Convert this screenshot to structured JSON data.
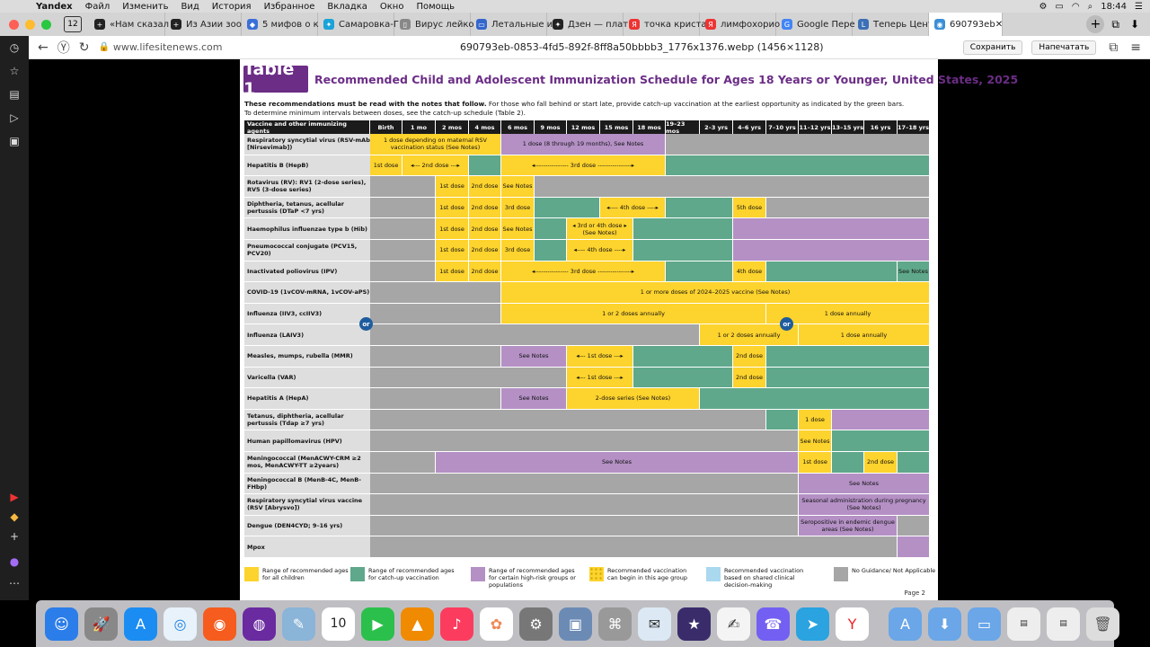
{
  "menubar": {
    "app": "Yandex",
    "items": [
      "Файл",
      "Изменить",
      "Вид",
      "История",
      "Избранное",
      "Вкладка",
      "Окно",
      "Помощь"
    ],
    "time": "18:44"
  },
  "tabbar": {
    "tab_count": "12",
    "tabs": [
      {
        "title": "«Нам сказал",
        "fav": "+",
        "color": "#222"
      },
      {
        "title": "Из Азии зоо",
        "fav": "+",
        "color": "#222"
      },
      {
        "title": "5 мифов о к",
        "fav": "◆",
        "color": "#3a6fd8"
      },
      {
        "title": "Самаровка-Г",
        "fav": "✦",
        "color": "#1aa3d9"
      },
      {
        "title": "Вирус лейко",
        "fav": "▯",
        "color": "#888"
      },
      {
        "title": "Летальные и",
        "fav": "▭",
        "color": "#3366cc"
      },
      {
        "title": "Дзен — плат",
        "fav": "✦",
        "color": "#222"
      },
      {
        "title": "точка криста",
        "fav": "Я",
        "color": "#e33"
      },
      {
        "title": "лимфохорио",
        "fav": "Я",
        "color": "#e33"
      },
      {
        "title": "Google Пере",
        "fav": "G",
        "color": "#4285f4"
      },
      {
        "title": "Теперь Цент",
        "fav": "L",
        "color": "#3b6fb6"
      }
    ],
    "active_tab": "690793eb"
  },
  "addressbar": {
    "url": "www.lifesitenews.com",
    "title": "690793eb-0853-4fd5-892f-8ff8a50bbbb3_1776x1376.webp (1456×1128)",
    "save": "Сохранить",
    "print": "Напечатать"
  },
  "doc": {
    "badge": "Table 1",
    "title": "Recommended Child and Adolescent Immunization Schedule for Ages 18 Years or Younger, United States, 2025",
    "intro_bold": "These recommendations must be read with the notes that follow.",
    "intro_rest": " For those who fall behind or start late, provide catch-up vaccination at the earliest opportunity as indicated by the green bars.",
    "intro2": "To determine minimum intervals between doses, see the catch-up schedule (Table 2).",
    "col_header": "Vaccine and other immunizing agents",
    "ages": [
      "Birth",
      "1 mo",
      "2 mos",
      "4 mos",
      "6 mos",
      "9 mos",
      "12 mos",
      "15 mos",
      "18 mos",
      "19–23 mos",
      "2–3 yrs",
      "4–6 yrs",
      "7–10 yrs",
      "11–12 yrs",
      "13–15 yrs",
      "16 yrs",
      "17–18 yrs"
    ],
    "rows": [
      {
        "label": "Respiratory syncytial virus (RSV-mAb [Nirsevimab])",
        "cells": [
          [
            "Y",
            0,
            4,
            "1 dose depending on maternal RSV vaccination status (See Notes)"
          ],
          [
            "P",
            4,
            5,
            "1 dose (8 through 19 months), See Notes"
          ],
          [
            "A",
            9,
            8,
            ""
          ]
        ]
      },
      {
        "label": "Hepatitis B (HepB)",
        "cells": [
          [
            "Y",
            0,
            1,
            "1st dose"
          ],
          [
            "Y",
            1,
            2,
            "◂--- 2nd dose ---▸"
          ],
          [
            "G",
            3,
            1,
            ""
          ],
          [
            "Y",
            4,
            5,
            "◂---------------- 3rd dose ----------------▸"
          ],
          [
            "G",
            9,
            8,
            ""
          ]
        ]
      },
      {
        "label": "Rotavirus (RV): RV1 (2-dose series), RV5 (3-dose series)",
        "cells": [
          [
            "A",
            0,
            2,
            ""
          ],
          [
            "Y",
            2,
            1,
            "1st dose"
          ],
          [
            "Y",
            3,
            1,
            "2nd dose"
          ],
          [
            "Y",
            4,
            1,
            "See Notes"
          ],
          [
            "A",
            5,
            12,
            ""
          ]
        ]
      },
      {
        "label": "Diphtheria, tetanus, acellular pertussis (DTaP <7 yrs)",
        "cells": [
          [
            "A",
            0,
            2,
            ""
          ],
          [
            "Y",
            2,
            1,
            "1st dose"
          ],
          [
            "Y",
            3,
            1,
            "2nd dose"
          ],
          [
            "Y",
            4,
            1,
            "3rd dose"
          ],
          [
            "G",
            5,
            2,
            ""
          ],
          [
            "Y",
            7,
            2,
            "◂---- 4th dose ----▸"
          ],
          [
            "G",
            9,
            2,
            ""
          ],
          [
            "Y",
            11,
            1,
            "5th dose"
          ],
          [
            "A",
            12,
            5,
            ""
          ]
        ]
      },
      {
        "label": "Haemophilus influenzae type b (Hib)",
        "cells": [
          [
            "A",
            0,
            2,
            ""
          ],
          [
            "Y",
            2,
            1,
            "1st dose"
          ],
          [
            "Y",
            3,
            1,
            "2nd dose"
          ],
          [
            "Y",
            4,
            1,
            "See Notes"
          ],
          [
            "G",
            5,
            1,
            ""
          ],
          [
            "Y",
            6,
            2,
            "◂ 3rd or 4th dose ▸ (See Notes)"
          ],
          [
            "G",
            8,
            3,
            ""
          ],
          [
            "P",
            11,
            6,
            ""
          ]
        ]
      },
      {
        "label": "Pneumococcal conjugate (PCV15, PCV20)",
        "cells": [
          [
            "A",
            0,
            2,
            ""
          ],
          [
            "Y",
            2,
            1,
            "1st dose"
          ],
          [
            "Y",
            3,
            1,
            "2nd dose"
          ],
          [
            "Y",
            4,
            1,
            "3rd dose"
          ],
          [
            "G",
            5,
            1,
            ""
          ],
          [
            "Y",
            6,
            2,
            "◂---- 4th dose ----▸"
          ],
          [
            "G",
            8,
            3,
            ""
          ],
          [
            "P",
            11,
            6,
            ""
          ]
        ]
      },
      {
        "label": "Inactivated poliovirus (IPV)",
        "cells": [
          [
            "A",
            0,
            2,
            ""
          ],
          [
            "Y",
            2,
            1,
            "1st dose"
          ],
          [
            "Y",
            3,
            1,
            "2nd dose"
          ],
          [
            "Y",
            4,
            5,
            "◂---------------- 3rd dose ----------------▸"
          ],
          [
            "G",
            9,
            2,
            ""
          ],
          [
            "Y",
            11,
            1,
            "4th dose"
          ],
          [
            "G",
            12,
            4,
            ""
          ],
          [
            "G",
            16,
            1,
            "See Notes"
          ]
        ]
      },
      {
        "label": "COVID-19 (1vCOV-mRNA, 1vCOV-aPS)",
        "cells": [
          [
            "A",
            0,
            4,
            ""
          ],
          [
            "Y",
            4,
            13,
            "1 or more doses of 2024–2025 vaccine (See Notes)"
          ]
        ]
      },
      {
        "label": "Influenza (IIV3, ccIIV3)",
        "cells": [
          [
            "A",
            0,
            4,
            ""
          ],
          [
            "Y",
            4,
            8,
            "1 or 2 doses annually"
          ],
          [
            "Y",
            12,
            5,
            "1 dose annually"
          ]
        ]
      },
      {
        "label": "Influenza (LAIV3)",
        "cells": [
          [
            "A",
            0,
            10,
            ""
          ],
          [
            "Y",
            10,
            3,
            "1 or 2 doses annually"
          ],
          [
            "Y",
            13,
            4,
            "1 dose annually"
          ]
        ]
      },
      {
        "label": "Measles, mumps, rubella (MMR)",
        "cells": [
          [
            "A",
            0,
            4,
            ""
          ],
          [
            "P",
            4,
            2,
            "See Notes"
          ],
          [
            "Y",
            6,
            2,
            "◂--- 1st dose ---▸"
          ],
          [
            "G",
            8,
            3,
            ""
          ],
          [
            "Y",
            11,
            1,
            "2nd dose"
          ],
          [
            "G",
            12,
            5,
            ""
          ]
        ]
      },
      {
        "label": "Varicella (VAR)",
        "cells": [
          [
            "A",
            0,
            6,
            ""
          ],
          [
            "Y",
            6,
            2,
            "◂--- 1st dose ---▸"
          ],
          [
            "G",
            8,
            3,
            ""
          ],
          [
            "Y",
            11,
            1,
            "2nd dose"
          ],
          [
            "G",
            12,
            5,
            ""
          ]
        ]
      },
      {
        "label": "Hepatitis A (HepA)",
        "cells": [
          [
            "A",
            0,
            4,
            ""
          ],
          [
            "P",
            4,
            2,
            "See Notes"
          ],
          [
            "Y",
            6,
            4,
            "2-dose series (See Notes)"
          ],
          [
            "G",
            10,
            7,
            ""
          ]
        ]
      },
      {
        "label": "Tetanus, diphtheria, acellular pertussis (Tdap ≥7 yrs)",
        "cells": [
          [
            "A",
            0,
            12,
            ""
          ],
          [
            "G",
            12,
            1,
            ""
          ],
          [
            "Y",
            13,
            1,
            "1 dose"
          ],
          [
            "P",
            14,
            3,
            ""
          ]
        ]
      },
      {
        "label": "Human papillomavirus (HPV)",
        "cells": [
          [
            "A",
            0,
            13,
            ""
          ],
          [
            "Y",
            13,
            1,
            "See Notes"
          ],
          [
            "G",
            14,
            3,
            ""
          ]
        ]
      },
      {
        "label": "Meningococcal (MenACWY-CRM ≥2 mos, MenACWY-TT ≥2years)",
        "cells": [
          [
            "A",
            0,
            2,
            ""
          ],
          [
            "P",
            2,
            11,
            "See Notes"
          ],
          [
            "Y",
            13,
            1,
            "1st dose"
          ],
          [
            "G",
            14,
            1,
            ""
          ],
          [
            "Y",
            15,
            1,
            "2nd dose"
          ],
          [
            "G",
            16,
            1,
            ""
          ]
        ]
      },
      {
        "label": "Meningococcal B (MenB-4C, MenB-FHbp)",
        "cells": [
          [
            "A",
            0,
            13,
            ""
          ],
          [
            "P",
            13,
            4,
            "See Notes"
          ]
        ]
      },
      {
        "label": "Respiratory syncytial virus vaccine (RSV [Abrysvo])",
        "cells": [
          [
            "A",
            0,
            13,
            ""
          ],
          [
            "P",
            13,
            4,
            "Seasonal administration during pregnancy (See Notes)"
          ]
        ]
      },
      {
        "label": "Dengue (DEN4CYD; 9–16 yrs)",
        "cells": [
          [
            "A",
            0,
            13,
            ""
          ],
          [
            "P",
            13,
            3,
            "Seropositive in endemic dengue areas (See Notes)"
          ],
          [
            "A",
            16,
            1,
            ""
          ]
        ]
      },
      {
        "label": "Mpox",
        "cells": [
          [
            "A",
            0,
            16,
            ""
          ],
          [
            "P",
            16,
            1,
            ""
          ]
        ]
      }
    ],
    "or_label": "or",
    "legend": [
      {
        "color": "#fdd32d",
        "text": "Range of recommended ages for all children"
      },
      {
        "color": "#5fa88b",
        "text": "Range of recommended ages for catch-up vaccination"
      },
      {
        "color": "#b490c5",
        "text": "Range of recommended ages for certain high-risk groups or populations"
      },
      {
        "color": "#fdd32d",
        "text": "Recommended vaccination can begin in this age group"
      },
      {
        "color": "#a9d8ef",
        "text": "Recommended vaccination based on shared clinical decision-making"
      },
      {
        "color": "#a6a6a6",
        "text": "No Guidance/ Not Applicable"
      }
    ],
    "page": "Page 2"
  }
}
